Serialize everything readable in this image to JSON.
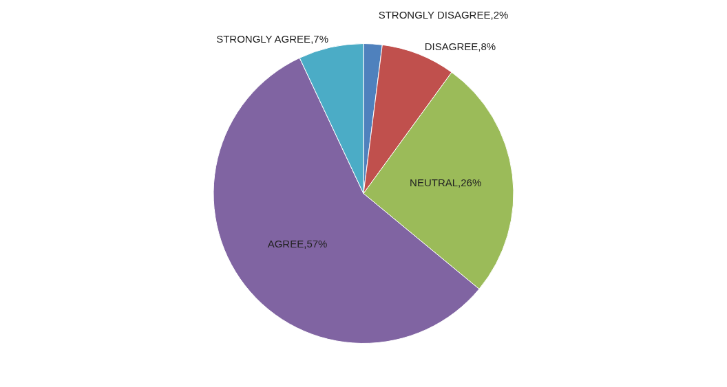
{
  "chart_data": {
    "type": "pie",
    "categories": [
      "STRONGLY DISAGREE",
      "DISAGREE",
      "NEUTRAL",
      "AGREE",
      "STRONGLY AGREE"
    ],
    "values": [
      2,
      8,
      26,
      57,
      7
    ],
    "colors": [
      "#4f81bd",
      "#c0504d",
      "#9bbb59",
      "#8064a2",
      "#4bacc6"
    ],
    "value_labels": [
      ",2%",
      ",8%",
      ",26%",
      ",57%",
      ",7%"
    ],
    "legend": false
  }
}
